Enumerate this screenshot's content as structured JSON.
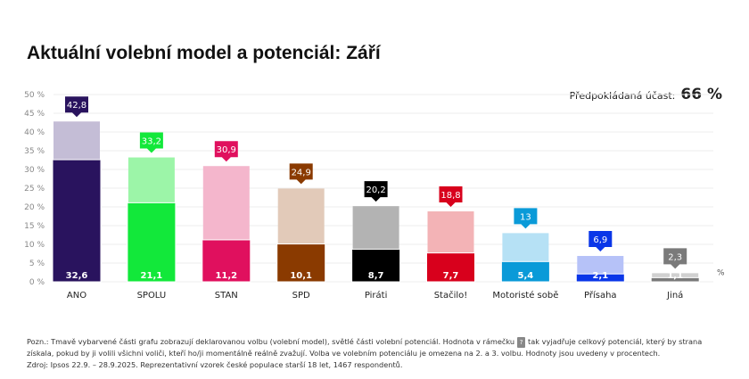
{
  "title": "Aktuální volební model a potenciál: Září",
  "turnout": {
    "label": "Předpokládaná účast:",
    "value": "66 %"
  },
  "note": {
    "part1": "Pozn.: Tmavě vybarvené části grafu zobrazují deklarovanou volbu (volební model), světlé části volební potenciál. Hodnota v rámečku",
    "box": "?",
    "part2": "tak vyjadřuje celkový potenciál, který by strana získala, pokud by ji volili všichni voliči, kteří ho/ji momentálně reálně zvažují. Volba ve volebním potenciálu je omezena na 2. a 3. volbu. Hodnoty jsou uvedeny v procentech."
  },
  "source": "Zdroj: Ipsos 22.9. – 28.9.2025. Reprezentativní vzorek české populace starší 18 let, 1467 respondentů.",
  "chart_data": {
    "type": "bar",
    "ylim": [
      0,
      50
    ],
    "yticks": [
      "0 %",
      "5 %",
      "10 %",
      "15 %",
      "20 %",
      "25 %",
      "30 %",
      "35 %",
      "40 %",
      "45 %",
      "50 %"
    ],
    "unit_label": "%",
    "grid": true,
    "categories": [
      "ANO",
      "SPOLU",
      "STAN",
      "SPD",
      "Piráti",
      "Stačilo!",
      "Motoristé sobě",
      "Přísaha",
      "Jiná"
    ],
    "series": [
      {
        "name": "model",
        "values": [
          32.6,
          21.1,
          11.2,
          10.1,
          8.7,
          7.7,
          5.4,
          2.1,
          1.1
        ],
        "labels": [
          "32,6",
          "21,1",
          "11,2",
          "10,1",
          "8,7",
          "7,7",
          "5,4",
          "2,1",
          "1,1"
        ]
      },
      {
        "name": "potential",
        "values": [
          42.8,
          33.2,
          30.9,
          24.9,
          20.2,
          18.8,
          13,
          6.9,
          2.3
        ],
        "labels": [
          "42,8",
          "33,2",
          "30,9",
          "24,9",
          "20,2",
          "18,8",
          "13",
          "6,9",
          "2,3"
        ]
      }
    ],
    "colors": {
      "dark": [
        "#29135e",
        "#12e83a",
        "#e0105e",
        "#8a3a00",
        "#000000",
        "#d8001c",
        "#0a9ad8",
        "#0a36e8",
        "#7a7a7a"
      ],
      "light": [
        "#c4bdd6",
        "#9cf5a8",
        "#f4b6cc",
        "#e2cab9",
        "#b3b3b3",
        "#f3b3b6",
        "#b6e1f5",
        "#b6c2f8",
        "#d0d0d0"
      ]
    }
  }
}
